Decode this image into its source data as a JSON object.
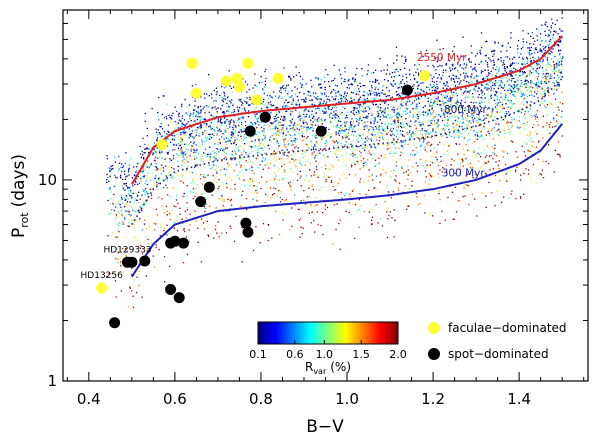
{
  "chart_data": {
    "type": "scatter",
    "xlabel": "B−V",
    "ylabel_main": "P",
    "ylabel_sub": "rot",
    "ylabel_unit": "(days)",
    "xlim": [
      0.34,
      1.56
    ],
    "ylim": [
      1,
      70
    ],
    "y_scale": "log",
    "x_ticks": [
      "0.4",
      "0.6",
      "0.8",
      "1.0",
      "1.2",
      "1.4"
    ],
    "x_tick_values": [
      0.4,
      0.6,
      0.8,
      1.0,
      1.2,
      1.4
    ],
    "y_ticks": [
      "1",
      "10"
    ],
    "y_tick_values": [
      1,
      10
    ],
    "gyrochrones": [
      {
        "name": "2550 Myr",
        "color": "#e02020",
        "style": "solid",
        "points": [
          [
            0.5,
            9.5
          ],
          [
            0.55,
            14.5
          ],
          [
            0.6,
            17.5
          ],
          [
            0.7,
            20.5
          ],
          [
            0.8,
            22.0
          ],
          [
            0.9,
            23.0
          ],
          [
            1.0,
            24.0
          ],
          [
            1.1,
            25.0
          ],
          [
            1.2,
            27.0
          ],
          [
            1.3,
            30.0
          ],
          [
            1.4,
            35.0
          ],
          [
            1.45,
            40.0
          ],
          [
            1.5,
            52.0
          ]
        ]
      },
      {
        "name": "800 Myr",
        "color": "#1a1a66",
        "style": "dotted",
        "points": [
          [
            0.5,
            6.0
          ],
          [
            0.55,
            9.0
          ],
          [
            0.6,
            11.0
          ],
          [
            0.7,
            12.5
          ],
          [
            0.8,
            13.3
          ],
          [
            0.9,
            14.0
          ],
          [
            1.0,
            14.6
          ],
          [
            1.1,
            15.3
          ],
          [
            1.2,
            16.5
          ],
          [
            1.3,
            18.5
          ],
          [
            1.4,
            22.0
          ],
          [
            1.45,
            25.0
          ],
          [
            1.5,
            32.0
          ]
        ]
      },
      {
        "name": "300 Myr",
        "color": "#2020c0",
        "style": "solid",
        "points": [
          [
            0.5,
            3.3
          ],
          [
            0.55,
            4.8
          ],
          [
            0.6,
            6.0
          ],
          [
            0.7,
            7.0
          ],
          [
            0.8,
            7.4
          ],
          [
            0.9,
            7.7
          ],
          [
            1.0,
            8.0
          ],
          [
            1.1,
            8.4
          ],
          [
            1.2,
            9.0
          ],
          [
            1.3,
            10.0
          ],
          [
            1.4,
            12.0
          ],
          [
            1.45,
            14.0
          ],
          [
            1.5,
            19.0
          ]
        ]
      }
    ],
    "faculae_dominated": [
      [
        0.43,
        2.9
      ],
      [
        0.57,
        15.0
      ],
      [
        0.64,
        38.0
      ],
      [
        0.65,
        27.0
      ],
      [
        0.72,
        31.0
      ],
      [
        0.745,
        32.0
      ],
      [
        0.75,
        29.0
      ],
      [
        0.77,
        38.0
      ],
      [
        0.79,
        25.0
      ],
      [
        0.84,
        32.0
      ],
      [
        1.18,
        33.0
      ]
    ],
    "spot_dominated": [
      [
        0.46,
        1.95
      ],
      [
        0.49,
        3.9
      ],
      [
        0.5,
        3.9
      ],
      [
        0.53,
        3.95
      ],
      [
        0.59,
        2.85
      ],
      [
        0.59,
        4.85
      ],
      [
        0.6,
        4.95
      ],
      [
        0.61,
        2.6
      ],
      [
        0.62,
        4.85
      ],
      [
        0.66,
        7.8
      ],
      [
        0.68,
        9.2
      ],
      [
        0.765,
        6.1
      ],
      [
        0.77,
        5.5
      ],
      [
        0.775,
        17.5
      ],
      [
        0.81,
        20.5
      ],
      [
        0.94,
        17.5
      ],
      [
        1.14,
        28.0
      ]
    ],
    "star_labels": [
      {
        "text": "HD129333",
        "x": 0.49,
        "y": 4.35
      },
      {
        "text": "HD13256",
        "x": 0.43,
        "y": 3.25
      }
    ],
    "colorbar": {
      "label_main": "R",
      "label_sub": "var",
      "label_unit": "(%)",
      "ticks": [
        "0.1",
        "0.6",
        "1.0",
        "1.5",
        "2.0"
      ],
      "range": [
        0.1,
        2.0
      ],
      "colors": [
        "#00007f",
        "#0000ff",
        "#007fff",
        "#00ffff",
        "#7fff7f",
        "#ffff00",
        "#ff7f00",
        "#ff0000",
        "#7f0000"
      ]
    },
    "legend": {
      "position": "bottom-right",
      "entries": [
        {
          "label": "faculae−dominated",
          "color": "#ffff33"
        },
        {
          "label": "spot−dominated",
          "color": "#000000"
        }
      ]
    }
  }
}
